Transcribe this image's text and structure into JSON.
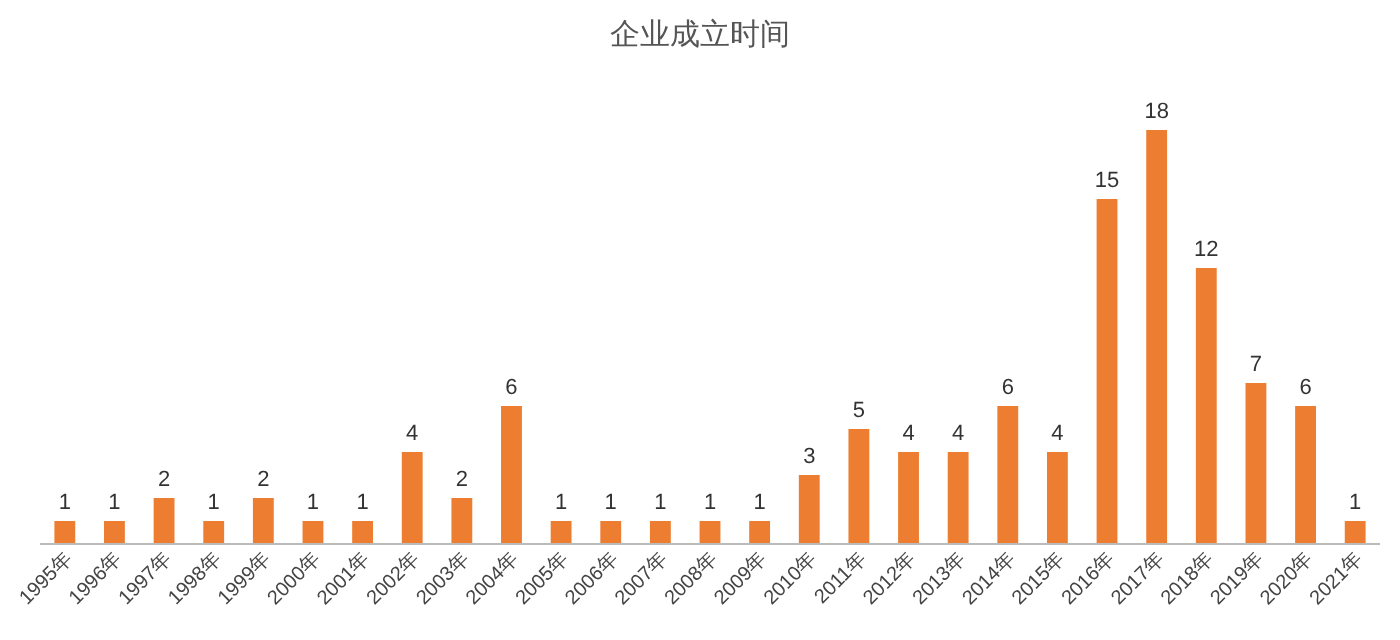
{
  "chart_data": {
    "type": "bar",
    "title": "企业成立时间",
    "categories": [
      "1995年",
      "1996年",
      "1997年",
      "1998年",
      "1999年",
      "2000年",
      "2001年",
      "2002年",
      "2003年",
      "2004年",
      "2005年",
      "2006年",
      "2007年",
      "2008年",
      "2009年",
      "2010年",
      "2011年",
      "2012年",
      "2013年",
      "2014年",
      "2015年",
      "2016年",
      "2017年",
      "2018年",
      "2019年",
      "2020年",
      "2021年"
    ],
    "values": [
      1,
      1,
      2,
      1,
      2,
      1,
      1,
      4,
      2,
      6,
      1,
      1,
      1,
      1,
      1,
      3,
      5,
      4,
      4,
      6,
      4,
      15,
      18,
      12,
      7,
      6,
      1
    ],
    "color": "#ed7d31",
    "data_labels": true
  }
}
